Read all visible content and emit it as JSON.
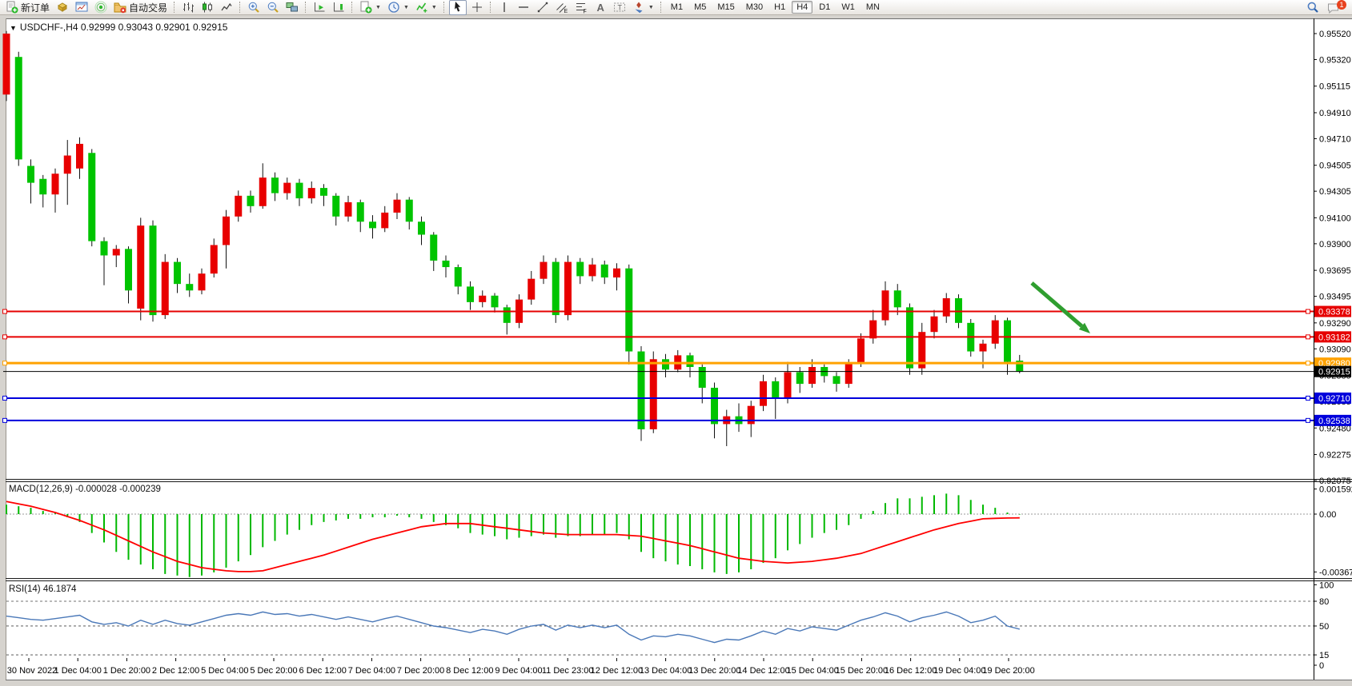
{
  "toolbar": {
    "groups": [
      {
        "items": [
          {
            "icon": "new-order",
            "label": "新订单",
            "name": "new-order-button"
          },
          {
            "icon": "module-cube",
            "name": "profiles-button"
          },
          {
            "icon": "chart-window",
            "name": "new-chart-button"
          },
          {
            "icon": "signal",
            "name": "signals-button"
          },
          {
            "icon": "autotrading",
            "label": "自动交易",
            "name": "autotrading-button"
          }
        ]
      },
      {
        "items": [
          {
            "icon": "bars",
            "name": "bar-chart-button"
          },
          {
            "icon": "candles",
            "name": "candlestick-chart-button"
          },
          {
            "icon": "linechart",
            "name": "line-chart-button"
          }
        ]
      },
      {
        "items": [
          {
            "icon": "zoom-in",
            "name": "zoom-in-button"
          },
          {
            "icon": "zoom-out",
            "name": "zoom-out-button"
          },
          {
            "icon": "tile",
            "name": "tile-windows-button"
          }
        ]
      },
      {
        "items": [
          {
            "icon": "autoscroll",
            "name": "auto-scroll-button"
          },
          {
            "icon": "chart-shift",
            "name": "chart-shift-button"
          }
        ]
      },
      {
        "items": [
          {
            "icon": "new-order-dd",
            "name": "new-order-menu-button",
            "dropdown": true
          },
          {
            "icon": "clock",
            "name": "period-menu-button",
            "dropdown": true
          },
          {
            "icon": "indicators",
            "name": "indicators-menu-button",
            "dropdown": true
          }
        ]
      },
      {
        "items": [
          {
            "icon": "cursor",
            "name": "cursor-tool-button",
            "pressed": true
          },
          {
            "icon": "crosshair",
            "name": "crosshair-tool-button"
          }
        ]
      },
      {
        "items": [
          {
            "icon": "vline",
            "name": "vertical-line-tool-button"
          },
          {
            "icon": "hline",
            "name": "horizontal-line-tool-button"
          },
          {
            "icon": "trendline",
            "name": "trendline-tool-button"
          },
          {
            "icon": "channel",
            "name": "equidistant-channel-tool-button"
          },
          {
            "icon": "fibonacci",
            "name": "fibonacci-tool-button"
          },
          {
            "icon": "text",
            "name": "text-tool-button"
          },
          {
            "icon": "label",
            "name": "text-label-tool-button"
          },
          {
            "icon": "shapes",
            "name": "arrows-tool-button",
            "dropdown": true
          }
        ]
      }
    ],
    "timeframes": [
      "M1",
      "M5",
      "M15",
      "M30",
      "H1",
      "H4",
      "D1",
      "W1",
      "MN"
    ],
    "active_timeframe": "H4",
    "right": [
      {
        "icon": "search",
        "name": "search-button"
      },
      {
        "icon": "chat",
        "name": "chat-button",
        "badge": "1"
      }
    ]
  },
  "chart": {
    "title_text": "USDCHF-,H4  0.92999 0.93043 0.92901 0.92915",
    "symbol": "USDCHF-",
    "period": "H4",
    "open": "0.92999",
    "high": "0.93043",
    "low": "0.92901",
    "close": "0.92915",
    "up_color": "#e80000",
    "down_color": "#00c400",
    "wick_color": "#111111",
    "price_axis_ticks": [
      "0.95520",
      "0.95320",
      "0.95115",
      "0.94910",
      "0.94710",
      "0.94505",
      "0.94305",
      "0.94100",
      "0.93900",
      "0.93695",
      "0.93495",
      "0.93290",
      "0.93090",
      "0.92885",
      "0.92685",
      "0.92480",
      "0.92275",
      "0.92075"
    ],
    "price_range": {
      "top": 0.95625,
      "bottom": 0.92087
    },
    "hlines": [
      {
        "price": 0.93378,
        "label": "0.93378",
        "color": "#e60000",
        "width": 2
      },
      {
        "price": 0.93182,
        "label": "0.93182",
        "color": "#e60000",
        "width": 2
      },
      {
        "price": 0.9298,
        "label": "0.92980",
        "color": "#ffa200",
        "width": 3
      },
      {
        "price": 0.9271,
        "label": "0.92710",
        "color": "#0000dc",
        "width": 2
      },
      {
        "price": 0.92538,
        "label": "0.92538",
        "color": "#0000dc",
        "width": 2
      }
    ],
    "current_price": {
      "price": 0.92915,
      "label": "0.92915",
      "color": "#000000"
    },
    "arrow": {
      "from": [
        1289,
        354
      ],
      "to": [
        1362,
        417
      ],
      "color": "#2f9e2f"
    }
  },
  "chart_data": {
    "type": "candlestick",
    "candles": [
      [
        0.9505,
        0.9554,
        0.95,
        0.9552
      ],
      [
        0.9534,
        0.9538,
        0.945,
        0.9455
      ],
      [
        0.945,
        0.9455,
        0.9421,
        0.9437
      ],
      [
        0.944,
        0.9443,
        0.9418,
        0.9428
      ],
      [
        0.9428,
        0.9448,
        0.9414,
        0.9444
      ],
      [
        0.9444,
        0.947,
        0.942,
        0.9458
      ],
      [
        0.9448,
        0.9472,
        0.944,
        0.9467
      ],
      [
        0.946,
        0.9463,
        0.9388,
        0.9392
      ],
      [
        0.9392,
        0.9395,
        0.9358,
        0.9381
      ],
      [
        0.9381,
        0.9389,
        0.9372,
        0.9386
      ],
      [
        0.9386,
        0.9388,
        0.9344,
        0.9354
      ],
      [
        0.934,
        0.941,
        0.9331,
        0.9404
      ],
      [
        0.9404,
        0.9408,
        0.933,
        0.9335
      ],
      [
        0.9335,
        0.9382,
        0.9332,
        0.9376
      ],
      [
        0.9376,
        0.9379,
        0.9352,
        0.9359
      ],
      [
        0.9359,
        0.9367,
        0.9349,
        0.9354
      ],
      [
        0.9354,
        0.9371,
        0.9351,
        0.9367
      ],
      [
        0.9367,
        0.9394,
        0.9364,
        0.9389
      ],
      [
        0.9389,
        0.9416,
        0.9371,
        0.9411
      ],
      [
        0.9411,
        0.9431,
        0.9407,
        0.9427
      ],
      [
        0.9427,
        0.9431,
        0.9414,
        0.9419
      ],
      [
        0.9419,
        0.9452,
        0.9417,
        0.9441
      ],
      [
        0.9441,
        0.9445,
        0.9423,
        0.9429
      ],
      [
        0.9429,
        0.9441,
        0.9424,
        0.9437
      ],
      [
        0.9437,
        0.944,
        0.9419,
        0.9425
      ],
      [
        0.9425,
        0.9438,
        0.9421,
        0.9433
      ],
      [
        0.9433,
        0.9436,
        0.9419,
        0.9427
      ],
      [
        0.9427,
        0.9429,
        0.9404,
        0.9411
      ],
      [
        0.9411,
        0.9427,
        0.9407,
        0.9422
      ],
      [
        0.9422,
        0.9424,
        0.9399,
        0.9407
      ],
      [
        0.9407,
        0.9412,
        0.9394,
        0.9402
      ],
      [
        0.9402,
        0.9419,
        0.9399,
        0.9414
      ],
      [
        0.9414,
        0.9429,
        0.9409,
        0.9424
      ],
      [
        0.9424,
        0.9426,
        0.9401,
        0.9407
      ],
      [
        0.9407,
        0.9411,
        0.9389,
        0.9397
      ],
      [
        0.9397,
        0.9399,
        0.9369,
        0.9377
      ],
      [
        0.9377,
        0.9381,
        0.9364,
        0.9372
      ],
      [
        0.9372,
        0.9374,
        0.9351,
        0.9357
      ],
      [
        0.9357,
        0.9361,
        0.9339,
        0.9345
      ],
      [
        0.9345,
        0.9354,
        0.9341,
        0.935
      ],
      [
        0.935,
        0.9352,
        0.9337,
        0.9341
      ],
      [
        0.9341,
        0.9343,
        0.932,
        0.9329
      ],
      [
        0.9329,
        0.9351,
        0.9325,
        0.9347
      ],
      [
        0.9347,
        0.9369,
        0.9343,
        0.9363
      ],
      [
        0.9363,
        0.9381,
        0.9359,
        0.9376
      ],
      [
        0.9376,
        0.9379,
        0.9329,
        0.9335
      ],
      [
        0.9335,
        0.9381,
        0.9331,
        0.9376
      ],
      [
        0.9376,
        0.9379,
        0.9359,
        0.9365
      ],
      [
        0.9365,
        0.9379,
        0.9361,
        0.9374
      ],
      [
        0.9374,
        0.9377,
        0.9359,
        0.9364
      ],
      [
        0.9364,
        0.9375,
        0.9354,
        0.9371
      ],
      [
        0.9371,
        0.9374,
        0.9297,
        0.9307
      ],
      [
        0.9307,
        0.9311,
        0.9238,
        0.9247
      ],
      [
        0.9247,
        0.9307,
        0.9244,
        0.9301
      ],
      [
        0.9301,
        0.9305,
        0.9287,
        0.9293
      ],
      [
        0.9293,
        0.9308,
        0.9291,
        0.9304
      ],
      [
        0.9304,
        0.9306,
        0.9287,
        0.9295
      ],
      [
        0.9295,
        0.9297,
        0.9267,
        0.9279
      ],
      [
        0.9279,
        0.9283,
        0.924,
        0.9251
      ],
      [
        0.9251,
        0.9262,
        0.9234,
        0.9257
      ],
      [
        0.9257,
        0.9267,
        0.9245,
        0.9251
      ],
      [
        0.9251,
        0.9269,
        0.9241,
        0.9265
      ],
      [
        0.9265,
        0.9289,
        0.9261,
        0.9284
      ],
      [
        0.9284,
        0.9287,
        0.9255,
        0.9271
      ],
      [
        0.9271,
        0.9299,
        0.9267,
        0.9291
      ],
      [
        0.9291,
        0.9295,
        0.9275,
        0.9282
      ],
      [
        0.9282,
        0.9301,
        0.9279,
        0.9295
      ],
      [
        0.9295,
        0.9297,
        0.9283,
        0.9288
      ],
      [
        0.9288,
        0.9291,
        0.9276,
        0.9282
      ],
      [
        0.9282,
        0.9301,
        0.9279,
        0.9298
      ],
      [
        0.9298,
        0.9321,
        0.9295,
        0.9317
      ],
      [
        0.9317,
        0.9339,
        0.9313,
        0.9331
      ],
      [
        0.9331,
        0.9361,
        0.9327,
        0.9354
      ],
      [
        0.9354,
        0.9359,
        0.9335,
        0.9341
      ],
      [
        0.9341,
        0.9344,
        0.9289,
        0.9294
      ],
      [
        0.9294,
        0.9329,
        0.9289,
        0.9322
      ],
      [
        0.9322,
        0.9339,
        0.9317,
        0.9334
      ],
      [
        0.9334,
        0.9352,
        0.9329,
        0.9348
      ],
      [
        0.9348,
        0.9351,
        0.9325,
        0.9329
      ],
      [
        0.9329,
        0.9332,
        0.9303,
        0.9307
      ],
      [
        0.9307,
        0.9316,
        0.9294,
        0.9313
      ],
      [
        0.9313,
        0.9335,
        0.9309,
        0.9331
      ],
      [
        0.9331,
        0.9333,
        0.9289,
        0.9299
      ],
      [
        0.92999,
        0.93043,
        0.92901,
        0.92915
      ]
    ]
  },
  "macd": {
    "label_text": "MACD(12,26,9) -0.000028 -0.000239",
    "name": "MACD(12,26,9)",
    "value_main": "-0.000028",
    "value_signal": "-0.000239",
    "axis_ticks": [
      "0.001592",
      "0.00",
      "-0.003672"
    ],
    "hist_color": "#00b800",
    "signal_color": "#ff0000",
    "hist": [
      0.0006,
      0.0005,
      0.0004,
      0.0002,
      0.0001,
      -0.0002,
      -0.0005,
      -0.0012,
      -0.0018,
      -0.0024,
      -0.0029,
      -0.0032,
      -0.0035,
      -0.0038,
      -0.0039,
      -0.004,
      -0.0039,
      -0.0037,
      -0.0034,
      -0.003,
      -0.0026,
      -0.0021,
      -0.0017,
      -0.0013,
      -0.001,
      -0.0007,
      -0.0005,
      -0.0004,
      -0.0003,
      -0.0003,
      -0.0002,
      -0.0002,
      -0.0001,
      -0.0002,
      -0.0003,
      -0.0005,
      -0.0007,
      -0.0009,
      -0.0012,
      -0.0013,
      -0.0014,
      -0.0016,
      -0.0015,
      -0.0014,
      -0.0013,
      -0.0015,
      -0.0014,
      -0.0014,
      -0.0013,
      -0.0013,
      -0.0012,
      -0.0016,
      -0.0024,
      -0.0028,
      -0.003,
      -0.0032,
      -0.0033,
      -0.0035,
      -0.0037,
      -0.0038,
      -0.0037,
      -0.0035,
      -0.0031,
      -0.0028,
      -0.0023,
      -0.0019,
      -0.0015,
      -0.0012,
      -0.001,
      -0.0007,
      -0.0003,
      0.0002,
      0.0007,
      0.001,
      0.001,
      0.0011,
      0.0012,
      0.0013,
      0.0012,
      0.0009,
      0.0006,
      0.0004,
      0.0001,
      -3e-05
    ],
    "signal": [
      0.0008,
      0.00065,
      0.0005,
      0.0003,
      0.0001,
      -0.00015,
      -0.0004,
      -0.0007,
      -0.001,
      -0.00135,
      -0.0017,
      -0.00205,
      -0.0024,
      -0.0027,
      -0.003,
      -0.0032,
      -0.0034,
      -0.0035,
      -0.0036,
      -0.00365,
      -0.00365,
      -0.0036,
      -0.0034,
      -0.0032,
      -0.003,
      -0.0028,
      -0.0026,
      -0.00235,
      -0.0021,
      -0.00185,
      -0.0016,
      -0.0014,
      -0.0012,
      -0.001,
      -0.0008,
      -0.0007,
      -0.0006,
      -0.0006,
      -0.0006,
      -0.0007,
      -0.0008,
      -0.0009,
      -0.001,
      -0.0011,
      -0.0012,
      -0.00125,
      -0.0013,
      -0.0013,
      -0.0013,
      -0.0013,
      -0.0013,
      -0.00135,
      -0.0014,
      -0.00155,
      -0.0017,
      -0.00185,
      -0.002,
      -0.0022,
      -0.0024,
      -0.0026,
      -0.0028,
      -0.0029,
      -0.003,
      -0.00305,
      -0.0031,
      -0.00305,
      -0.003,
      -0.0029,
      -0.0028,
      -0.00265,
      -0.0025,
      -0.00225,
      -0.002,
      -0.00175,
      -0.0015,
      -0.00125,
      -0.001,
      -0.0008,
      -0.0006,
      -0.00045,
      -0.0003,
      -0.00027,
      -0.00025,
      -0.000239
    ]
  },
  "rsi": {
    "label_text": "RSI(14) 46.1874",
    "name": "RSI(14)",
    "value": "46.1874",
    "axis_ticks": [
      "100",
      "80",
      "50",
      "15",
      "0"
    ],
    "levels": [
      80,
      50,
      15
    ],
    "line_color": "#4a78b8",
    "series": [
      62,
      60,
      58,
      57,
      59,
      61,
      63,
      55,
      52,
      54,
      50,
      57,
      52,
      57,
      53,
      51,
      55,
      59,
      63,
      65,
      63,
      67,
      64,
      65,
      62,
      64,
      61,
      58,
      61,
      58,
      55,
      59,
      62,
      58,
      54,
      50,
      48,
      45,
      42,
      46,
      44,
      40,
      46,
      50,
      52,
      45,
      51,
      48,
      51,
      48,
      51,
      40,
      33,
      38,
      37,
      40,
      38,
      34,
      30,
      34,
      33,
      38,
      44,
      40,
      47,
      44,
      49,
      47,
      45,
      51,
      57,
      61,
      66,
      62,
      55,
      60,
      63,
      67,
      62,
      54,
      57,
      62,
      50,
      46.1874
    ]
  },
  "time_axis": {
    "labels": [
      "30 Nov 2022",
      "1 Dec 04:00",
      "1 Dec 20:00",
      "2 Dec 12:00",
      "5 Dec 04:00",
      "5 Dec 20:00",
      "6 Dec 12:00",
      "7 Dec 04:00",
      "7 Dec 20:00",
      "8 Dec 12:00",
      "9 Dec 04:00",
      "11 Dec 23:00",
      "12 Dec 12:00",
      "13 Dec 04:00",
      "13 Dec 20:00",
      "14 Dec 12:00",
      "15 Dec 04:00",
      "15 Dec 20:00",
      "16 Dec 12:00",
      "19 Dec 04:00",
      "19 Dec 20:00"
    ]
  }
}
